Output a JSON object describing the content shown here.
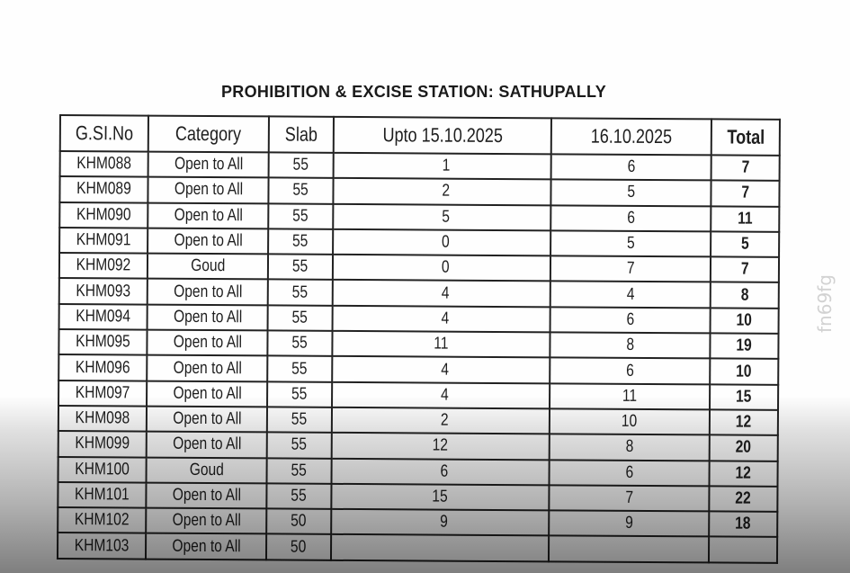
{
  "title": "PROHIBITION & EXCISE STATION: SATHUPALLY",
  "watermark": "fn69fg",
  "table": {
    "headers": [
      "G.SI.No",
      "Category",
      "Slab",
      "Upto 15.10.2025",
      "16.10.2025",
      "Total"
    ],
    "rows": [
      [
        "KHM088",
        "Open to All",
        "55",
        "1",
        "6",
        "7"
      ],
      [
        "KHM089",
        "Open to All",
        "55",
        "2",
        "5",
        "7"
      ],
      [
        "KHM090",
        "Open to All",
        "55",
        "5",
        "6",
        "11"
      ],
      [
        "KHM091",
        "Open to All",
        "55",
        "0",
        "5",
        "5"
      ],
      [
        "KHM092",
        "Goud",
        "55",
        "0",
        "7",
        "7"
      ],
      [
        "KHM093",
        "Open to All",
        "55",
        "4",
        "4",
        "8"
      ],
      [
        "KHM094",
        "Open to All",
        "55",
        "4",
        "6",
        "10"
      ],
      [
        "KHM095",
        "Open to All",
        "55",
        "11",
        "8",
        "19"
      ],
      [
        "KHM096",
        "Open to All",
        "55",
        "4",
        "6",
        "10"
      ],
      [
        "KHM097",
        "Open to All",
        "55",
        "4",
        "11",
        "15"
      ],
      [
        "KHM098",
        "Open to All",
        "55",
        "2",
        "10",
        "12"
      ],
      [
        "KHM099",
        "Open to All",
        "55",
        "12",
        "8",
        "20"
      ],
      [
        "KHM100",
        "Goud",
        "55",
        "6",
        "6",
        "12"
      ],
      [
        "KHM101",
        "Open to All",
        "55",
        "15",
        "7",
        "22"
      ],
      [
        "KHM102",
        "Open to All",
        "50",
        "9",
        "9",
        "18"
      ],
      [
        "KHM103",
        "Open to All",
        "50",
        "",
        "",
        ""
      ]
    ]
  }
}
